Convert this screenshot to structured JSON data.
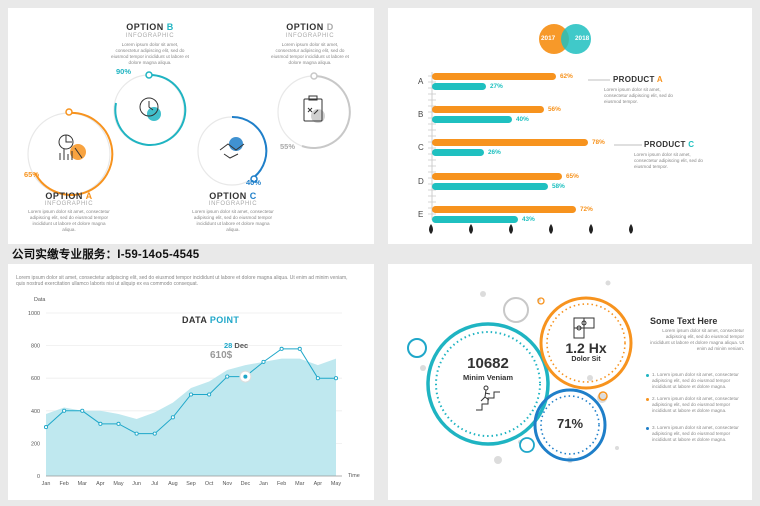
{
  "watermark_line": "公司实缴专业服务：I-59-14o5-4545",
  "panel1": {
    "option_a": {
      "title_prefix": "OPTION ",
      "title_letter": "A",
      "subtitle": "INFOGRAPHIC",
      "percent": "65%"
    },
    "option_b": {
      "title_prefix": "OPTION ",
      "title_letter": "B",
      "subtitle": "INFOGRAPHIC",
      "percent": "90%"
    },
    "option_c": {
      "title_prefix": "OPTION ",
      "title_letter": "C",
      "subtitle": "INFOGRAPHIC",
      "percent": "40%"
    },
    "option_d": {
      "title_prefix": "OPTION ",
      "title_letter": "D",
      "subtitle": "INFOGRAPHIC",
      "percent": "55%"
    },
    "lorem": "Lorem ipsum dolor sit amet, consectetur adipiscing elit, sed do eiusmod tempor incididunt ut labore et dolore magna aliqua."
  },
  "panel2": {
    "years": [
      "2017",
      "2018"
    ],
    "rows": [
      {
        "label": "A",
        "orange": 62,
        "teal": 27
      },
      {
        "label": "B",
        "orange": 56,
        "teal": 40
      },
      {
        "label": "C",
        "orange": 78,
        "teal": 26
      },
      {
        "label": "D",
        "orange": 65,
        "teal": 58
      },
      {
        "label": "E",
        "orange": 72,
        "teal": 43
      }
    ],
    "product_a": {
      "prefix": "PRODUCT ",
      "letter": "A"
    },
    "product_c": {
      "prefix": "PRODUCT ",
      "letter": "C"
    },
    "scale_start": "0",
    "scale_end": "100",
    "lorem": "Lorem ipsum dolor sit amet, consectetur adipiscing elit, sed do eiusmod tempor."
  },
  "panel3": {
    "intro": "Lorem ipsum dolor sit amet, consectetur adipiscing elit, sed do eiusmod tempor incididunt ut labore et dolore magna aliqua. Ut enim ad minim veniam, quis nostrud exercitation ullamco laboris nisi ut aliquip ex ea commodo consequat.",
    "title_a": "DATA ",
    "title_b": "POINT",
    "highlight_day": "28",
    "highlight_month": " Dec",
    "highlight_value": "610$",
    "y_title": "Data",
    "x_title": "Time",
    "colors": {
      "line": "#1fa7c9",
      "area": "#bfe8ef",
      "accent": "#1fa7c9"
    }
  },
  "panel4": {
    "big_number": "10682",
    "big_label": "Minim Veniam",
    "mid_value": "1.2 Hx",
    "mid_label": "Dolor Sit",
    "small_value": "71%",
    "heading": "Some Text Here",
    "heading_body": "Lorem ipsum dolor sit amet, consectetur adipiscing elit, sed do eiusmod tempor incididunt ut labore et dolore magna aliqua. Ut enim ad minim veniam.",
    "bullets": [
      {
        "text": "1. Lorem ipsum dolor sit amet, consectetur adipiscing elit, sed do eiusmod tempor incididunt ut labore et dolore magna.",
        "color": "#1fb4c2"
      },
      {
        "text": "2. Lorem ipsum dolor sit amet, consectetur adipiscing elit, sed do eiusmod tempor incididunt ut labore et dolore magna.",
        "color": "#f7931e"
      },
      {
        "text": "3. Lorem ipsum dolor sit amet, consectetur adipiscing elit, sed do eiusmod tempor incididunt ut labore et dolore magna.",
        "color": "#1f7fc9"
      }
    ]
  },
  "chart_data": {
    "type": "area",
    "categories": [
      "Jan",
      "Feb",
      "Mar",
      "Apr",
      "May",
      "Jun",
      "Jul",
      "Aug",
      "Sep",
      "Oct",
      "Nov",
      "Dec",
      "Jan",
      "Feb",
      "Mar",
      "Apr",
      "May"
    ],
    "series": [
      {
        "values": [
          300,
          400,
          400,
          320,
          320,
          260,
          260,
          360,
          500,
          500,
          610,
          610,
          700,
          780,
          780,
          600,
          600
        ]
      },
      {
        "values": [
          380,
          420,
          400,
          400,
          380,
          350,
          390,
          450,
          540,
          580,
          650,
          680,
          700,
          720,
          720,
          680,
          720
        ]
      }
    ],
    "title": "DATA POINT",
    "xlabel": "Time",
    "ylabel": "Data",
    "yticks": [
      0,
      200,
      400,
      600,
      800,
      1000
    ],
    "ylim": [
      0,
      1000
    ]
  }
}
